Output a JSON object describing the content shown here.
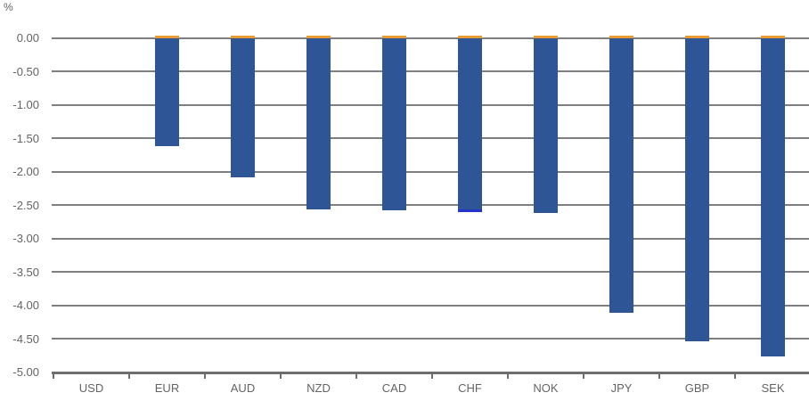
{
  "page": {
    "background": "#ffffff"
  },
  "chart_data": {
    "type": "bar",
    "title": "",
    "ylabel": "%",
    "xlabel": "",
    "categories": [
      "USD",
      "EUR",
      "AUD",
      "NZD",
      "CAD",
      "CHF",
      "NOK",
      "JPY",
      "GBP",
      "SEK"
    ],
    "values": [
      0.0,
      -1.62,
      -2.08,
      -2.56,
      -2.58,
      -2.61,
      -2.62,
      -4.11,
      -4.54,
      -4.76
    ],
    "ylim": [
      -5.0,
      0.0
    ],
    "ytick_step": 0.5,
    "ytick_labels": [
      "0.00",
      "-0.50",
      "-1.00",
      "-1.50",
      "-2.00",
      "-2.50",
      "-3.00",
      "-3.50",
      "-4.00",
      "-4.50",
      "-5.00"
    ],
    "grid": true,
    "legend_position": "none",
    "colors": {
      "bar": "#2E5596",
      "bar_top_cap": "#E89B33",
      "chf_bottom_cap": "#2333CC",
      "gridline": "#7F7F7F",
      "axis": "#6E6E6E",
      "text": "#646464"
    },
    "bar_details": {
      "top_cap": "thin orange strip above the zero line on every bar with a value",
      "bottom_cap_category": "CHF",
      "bottom_cap": "thin bright blue strip at the bottom of the CHF bar"
    }
  }
}
